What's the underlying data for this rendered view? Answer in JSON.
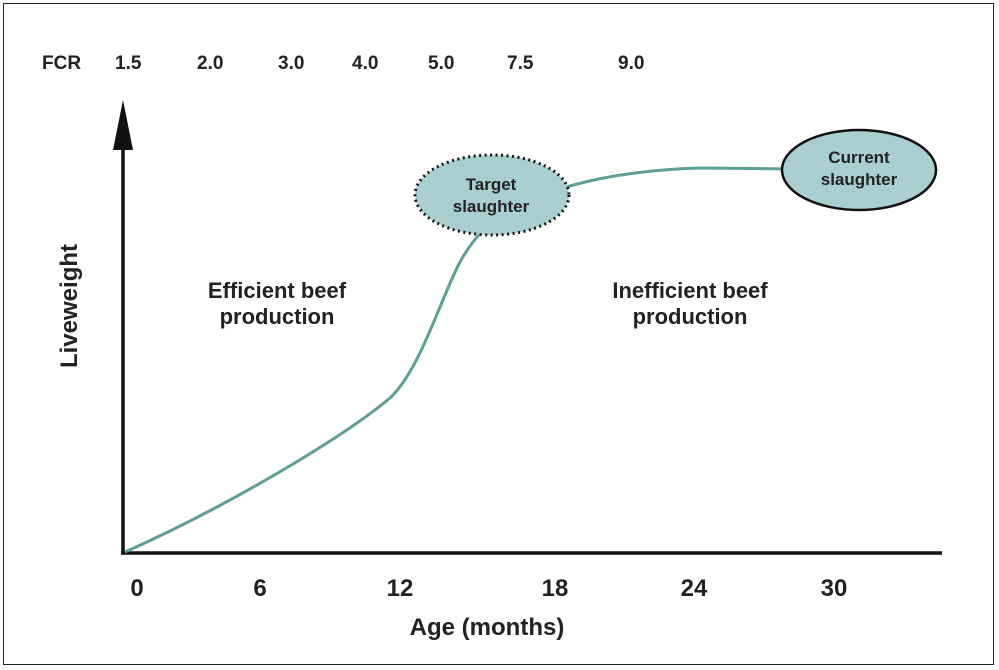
{
  "fcr": {
    "label": "FCR",
    "values": [
      "1.5",
      "2.0",
      "3.0",
      "4.0",
      "5.0",
      "7.5",
      "9.0"
    ]
  },
  "x_axis": {
    "title": "Age (months)",
    "ticks": [
      "0",
      "6",
      "12",
      "18",
      "24",
      "30"
    ]
  },
  "y_axis": {
    "title": "Liveweight"
  },
  "regions": {
    "efficient": [
      "Efficient beef",
      "production"
    ],
    "inefficient": [
      "Inefficient beef",
      "production"
    ]
  },
  "bubbles": {
    "target": [
      "Target",
      "slaughter"
    ],
    "current": [
      "Current",
      "slaughter"
    ]
  },
  "colors": {
    "curve": "#5f9e94",
    "bubble_fill": "#a9cfd1",
    "axis": "#111111",
    "text": "#222222"
  }
}
